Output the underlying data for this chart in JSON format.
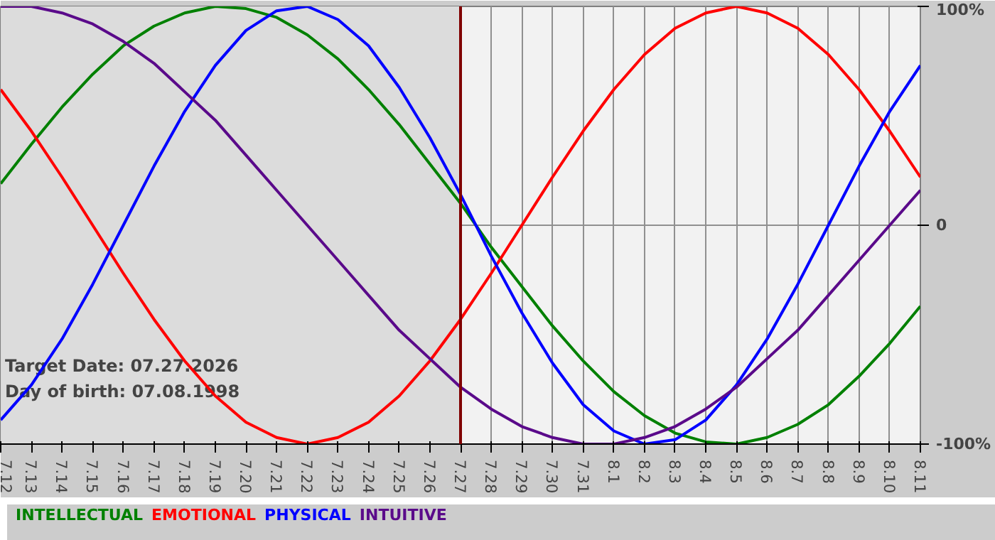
{
  "chart_data": {
    "type": "line",
    "categories": [
      "7.12",
      "7.13",
      "7.14",
      "7.15",
      "7.16",
      "7.17",
      "7.18",
      "7.19",
      "7.20",
      "7.21",
      "7.22",
      "7.23",
      "7.24",
      "7.25",
      "7.26",
      "7.27",
      "7.28",
      "7.29",
      "7.30",
      "7.31",
      "8.1",
      "8.2",
      "8.3",
      "8.4",
      "8.5",
      "8.6",
      "8.7",
      "8.8",
      "8.9",
      "8.10",
      "8.11"
    ],
    "series": [
      {
        "name": "INTELLECTUAL",
        "color": "#008000",
        "values": [
          0.19,
          0.37,
          0.54,
          0.69,
          0.82,
          0.91,
          0.97,
          1.0,
          0.99,
          0.95,
          0.87,
          0.76,
          0.62,
          0.46,
          0.28,
          0.1,
          -0.1,
          -0.28,
          -0.46,
          -0.62,
          -0.76,
          -0.87,
          -0.95,
          -0.99,
          -1.0,
          -0.97,
          -0.91,
          -0.82,
          -0.69,
          -0.54,
          -0.37
        ]
      },
      {
        "name": "EMOTIONAL",
        "color": "#ff0000",
        "values": [
          0.62,
          0.43,
          0.22,
          0,
          -0.22,
          -0.43,
          -0.62,
          -0.78,
          -0.9,
          -0.97,
          -1.0,
          -0.97,
          -0.9,
          -0.78,
          -0.62,
          -0.43,
          -0.22,
          0,
          0.22,
          0.43,
          0.62,
          0.78,
          0.9,
          0.97,
          1.0,
          0.97,
          0.9,
          0.78,
          0.62,
          0.43,
          0.22
        ]
      },
      {
        "name": "PHYSICAL",
        "color": "#0000ff",
        "values": [
          -0.89,
          -0.73,
          -0.52,
          -0.27,
          0,
          0.27,
          0.52,
          0.73,
          0.89,
          0.98,
          1.0,
          0.94,
          0.82,
          0.63,
          0.4,
          0.14,
          -0.14,
          -0.4,
          -0.63,
          -0.82,
          -0.94,
          -1.0,
          -0.98,
          -0.89,
          -0.73,
          -0.52,
          -0.27,
          0,
          0.27,
          0.52,
          0.73
        ]
      },
      {
        "name": "INTUITIVE",
        "color": "#5a0a8a",
        "values": [
          1.0,
          1.0,
          0.97,
          0.92,
          0.84,
          0.74,
          0.61,
          0.48,
          0.32,
          0.16,
          0,
          -0.16,
          -0.32,
          -0.48,
          -0.61,
          -0.74,
          -0.84,
          -0.92,
          -0.97,
          -1.0,
          -1.0,
          -0.97,
          -0.92,
          -0.84,
          -0.74,
          -0.61,
          -0.48,
          -0.32,
          -0.16,
          0,
          0.16
        ]
      }
    ],
    "ylim": [
      -1,
      1
    ],
    "yticks": [
      {
        "value": -1,
        "label": "-100%"
      },
      {
        "value": 0,
        "label": "0"
      },
      {
        "value": 1,
        "label": "100%"
      }
    ],
    "grid": true,
    "ref_lines": [
      {
        "axis": "x",
        "value": "7.27",
        "color": "#800000"
      }
    ],
    "bands": [
      {
        "axis": "x",
        "from": "7.12",
        "to": "7.27",
        "color": "#dcdcdc"
      }
    ],
    "annotations": [
      "Target Date: 07.27.2026",
      "Day of birth: 07.08.1998"
    ],
    "legend": "bottom"
  }
}
